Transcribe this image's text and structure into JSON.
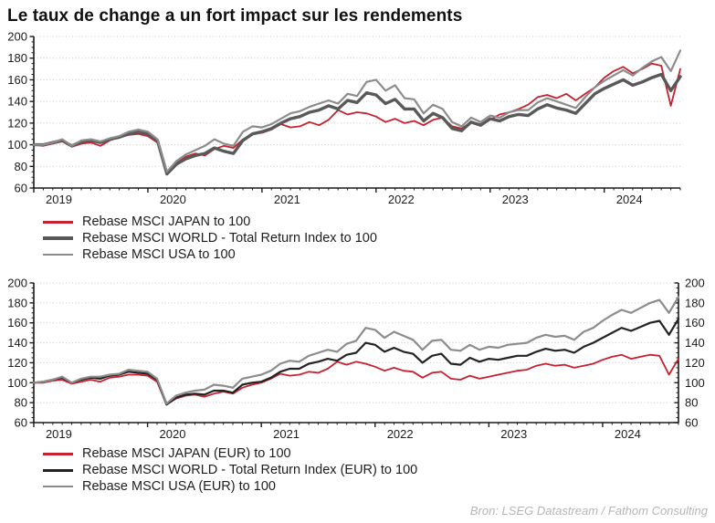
{
  "title": "Le taux de change a un fort impact sur les rendements",
  "source": "Bron: LSEG Datastream / Fathom Consulting",
  "colors": {
    "japan_red": "#c8202f",
    "world_dark_gray": "#595959",
    "world_black": "#232323",
    "usa_gray": "#8c8c8c",
    "grid": "#c9c9c9",
    "axis": "#1a1a1a",
    "tick_text": "#1c1c1c",
    "title_text": "#111111",
    "source_text": "#b5b5b5"
  },
  "chart_data": [
    {
      "type": "line",
      "title": "",
      "x_start": "2019-01",
      "x_end": "2024-09",
      "x_interval": "monthly",
      "x_tick_labels": [
        "2019",
        "2020",
        "2021",
        "2022",
        "2023",
        "2024"
      ],
      "ylim": [
        60,
        200
      ],
      "y_ticks": [
        60,
        80,
        100,
        120,
        140,
        160,
        180,
        200
      ],
      "y_minor_step": 5,
      "grid": "horizontal-dotted",
      "right_axis_labels": false,
      "legend_position": "below-left",
      "series": [
        {
          "name": "Rebase MSCI JAPAN to 100",
          "color": "#c8202f",
          "width": 1.8,
          "values": [
            100,
            99,
            101,
            103,
            98,
            101,
            102,
            99,
            104,
            107,
            109,
            110,
            108,
            102,
            75,
            83,
            89,
            92,
            90,
            96,
            99,
            97,
            105,
            110,
            111,
            114,
            119,
            116,
            117,
            121,
            118,
            123,
            132,
            128,
            130,
            129,
            126,
            121,
            124,
            120,
            122,
            118,
            123,
            125,
            117,
            115,
            121,
            119,
            123,
            128,
            130,
            133,
            137,
            144,
            146,
            143,
            147,
            141,
            147,
            153,
            162,
            168,
            172,
            166,
            170,
            175,
            173,
            136,
            170
          ]
        },
        {
          "name": "Rebase MSCI WORLD - Total Return Index to 100",
          "color": "#595959",
          "width": 3.4,
          "values": [
            100,
            100,
            102,
            104,
            99,
            103,
            104,
            102,
            105,
            107,
            110,
            112,
            110,
            104,
            73,
            82,
            87,
            90,
            92,
            97,
            94,
            92,
            104,
            110,
            112,
            115,
            120,
            124,
            126,
            130,
            132,
            136,
            133,
            141,
            139,
            148,
            146,
            138,
            142,
            133,
            133,
            122,
            129,
            125,
            115,
            113,
            121,
            118,
            124,
            122,
            126,
            128,
            127,
            133,
            137,
            134,
            132,
            129,
            138,
            147,
            152,
            156,
            160,
            155,
            158,
            162,
            165,
            150,
            163
          ]
        },
        {
          "name": "Rebase MSCI USA to 100",
          "color": "#8c8c8c",
          "width": 2.2,
          "values": [
            100,
            100,
            102,
            105,
            99,
            104,
            105,
            103,
            106,
            108,
            112,
            114,
            112,
            105,
            75,
            85,
            91,
            95,
            99,
            105,
            101,
            99,
            112,
            117,
            116,
            119,
            124,
            129,
            131,
            135,
            138,
            141,
            138,
            147,
            145,
            158,
            160,
            150,
            155,
            143,
            142,
            129,
            137,
            133,
            121,
            117,
            125,
            121,
            127,
            125,
            130,
            132,
            132,
            139,
            143,
            140,
            137,
            134,
            144,
            153,
            159,
            164,
            169,
            164,
            171,
            177,
            181,
            168,
            187
          ]
        }
      ]
    },
    {
      "type": "line",
      "title": "",
      "x_start": "2019-01",
      "x_end": "2024-09",
      "x_interval": "monthly",
      "x_tick_labels": [
        "2019",
        "2020",
        "2021",
        "2022",
        "2023",
        "2024"
      ],
      "ylim": [
        60,
        200
      ],
      "y_ticks": [
        60,
        80,
        100,
        120,
        140,
        160,
        180,
        200
      ],
      "y_minor_step": 5,
      "grid": "horizontal-dotted",
      "right_axis_labels": true,
      "legend_position": "below-left",
      "series": [
        {
          "name": "Rebase MSCI JAPAN (EUR) to 100",
          "color": "#c8202f",
          "width": 1.8,
          "values": [
            100,
            100,
            102,
            103,
            99,
            101,
            103,
            101,
            105,
            106,
            108,
            108,
            107,
            101,
            78,
            84,
            87,
            88,
            86,
            89,
            91,
            89,
            95,
            98,
            100,
            104,
            109,
            107,
            108,
            111,
            110,
            114,
            121,
            118,
            121,
            119,
            116,
            112,
            115,
            112,
            111,
            105,
            110,
            111,
            104,
            103,
            107,
            104,
            106,
            108,
            110,
            112,
            113,
            117,
            119,
            117,
            118,
            115,
            117,
            119,
            123,
            126,
            128,
            124,
            126,
            128,
            127,
            108,
            124
          ]
        },
        {
          "name": "Rebase MSCI WORLD - Total Return Index (EUR) to 100",
          "color": "#232323",
          "width": 2.2,
          "values": [
            100,
            101,
            103,
            105,
            100,
            103,
            105,
            104,
            107,
            108,
            111,
            110,
            109,
            103,
            78,
            85,
            88,
            89,
            88,
            92,
            92,
            90,
            98,
            100,
            101,
            105,
            111,
            114,
            114,
            119,
            121,
            124,
            122,
            128,
            130,
            140,
            138,
            131,
            135,
            131,
            129,
            120,
            127,
            129,
            119,
            118,
            125,
            121,
            124,
            123,
            125,
            127,
            127,
            131,
            134,
            132,
            133,
            130,
            136,
            140,
            145,
            150,
            155,
            152,
            156,
            160,
            162,
            148,
            164
          ]
        },
        {
          "name": "Rebase MSCI USA (EUR) to 100",
          "color": "#8c8c8c",
          "width": 2.2,
          "values": [
            100,
            101,
            103,
            106,
            100,
            104,
            106,
            106,
            108,
            109,
            113,
            112,
            111,
            104,
            79,
            87,
            90,
            92,
            93,
            98,
            97,
            95,
            104,
            106,
            108,
            112,
            119,
            122,
            121,
            127,
            130,
            133,
            131,
            139,
            142,
            155,
            153,
            145,
            151,
            147,
            143,
            133,
            142,
            143,
            133,
            132,
            138,
            133,
            136,
            135,
            138,
            139,
            140,
            145,
            148,
            146,
            147,
            143,
            151,
            155,
            162,
            168,
            173,
            170,
            175,
            180,
            183,
            170,
            186
          ]
        }
      ]
    }
  ]
}
